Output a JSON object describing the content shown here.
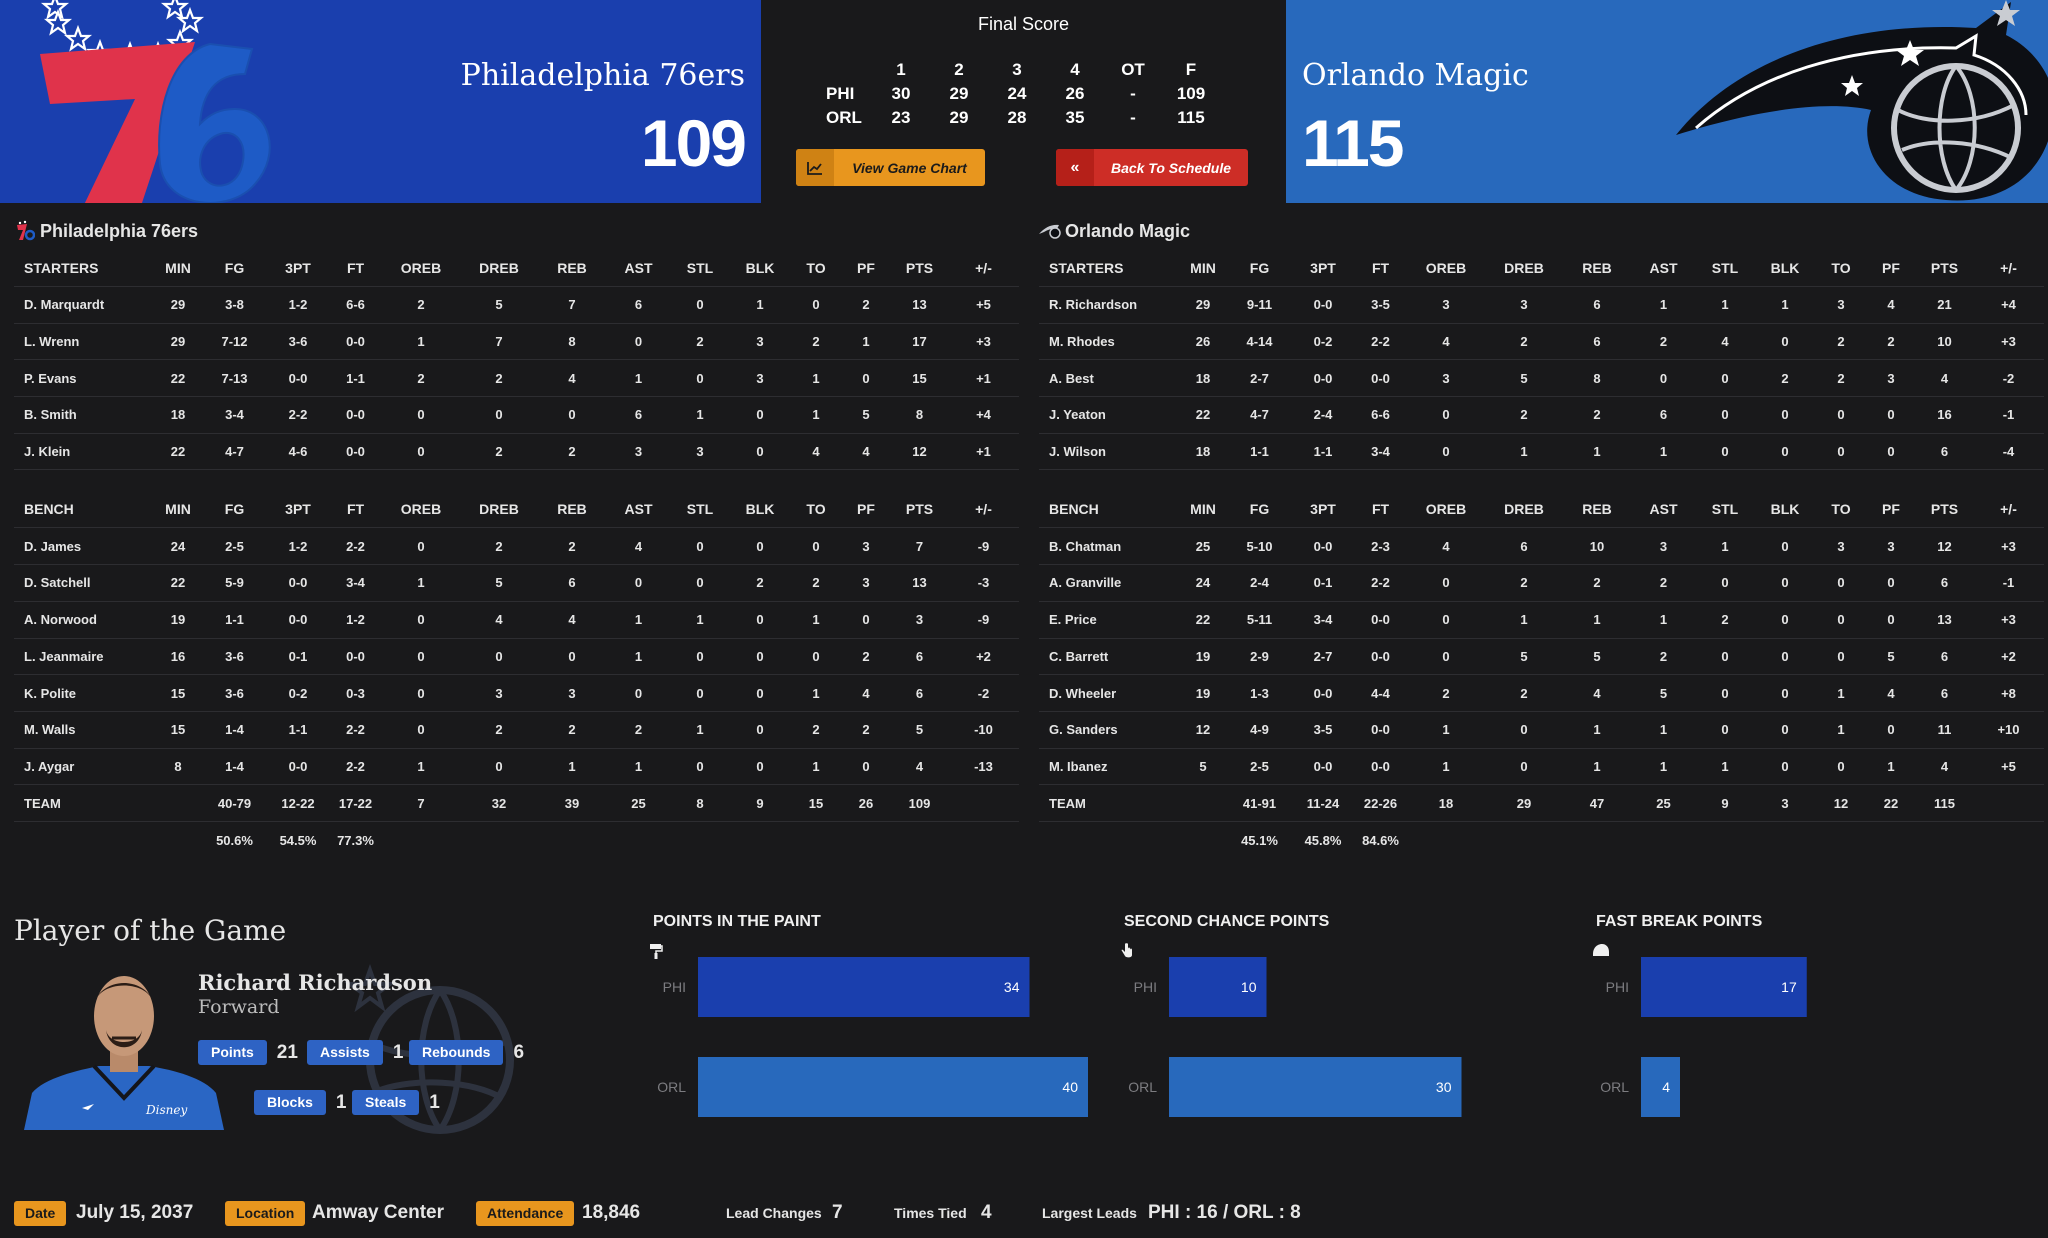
{
  "header": {
    "final_label": "Final Score",
    "home": {
      "name": "Philadelphia 76ers",
      "score": "109",
      "abbr": "PHI",
      "color": "#1a3fae"
    },
    "away": {
      "name": "Orlando Magic",
      "score": "115",
      "abbr": "ORL",
      "color": "#2869bc"
    },
    "linescore": {
      "periods": [
        "1",
        "2",
        "3",
        "4",
        "OT",
        "F"
      ],
      "rows": [
        {
          "team": "PHI",
          "values": [
            "30",
            "29",
            "24",
            "26",
            "-",
            "109"
          ]
        },
        {
          "team": "ORL",
          "values": [
            "23",
            "29",
            "28",
            "35",
            "-",
            "115"
          ]
        }
      ]
    },
    "buttons": {
      "chart_label": "View Game Chart",
      "back_label": "Back To Schedule"
    }
  },
  "boxscore": {
    "columns": [
      "MIN",
      "FG",
      "3PT",
      "FT",
      "OREB",
      "DREB",
      "REB",
      "AST",
      "STL",
      "BLK",
      "TO",
      "PF",
      "PTS",
      "+/-"
    ],
    "starters_label": "STARTERS",
    "bench_label": "BENCH",
    "home": {
      "team_name": "Philadelphia 76ers",
      "starters": [
        [
          "D. Marquardt",
          "29",
          "3-8",
          "1-2",
          "6-6",
          "2",
          "5",
          "7",
          "6",
          "0",
          "1",
          "0",
          "2",
          "13",
          "+5"
        ],
        [
          "L. Wrenn",
          "29",
          "7-12",
          "3-6",
          "0-0",
          "1",
          "7",
          "8",
          "0",
          "2",
          "3",
          "2",
          "1",
          "17",
          "+3"
        ],
        [
          "P. Evans",
          "22",
          "7-13",
          "0-0",
          "1-1",
          "2",
          "2",
          "4",
          "1",
          "0",
          "3",
          "1",
          "0",
          "15",
          "+1"
        ],
        [
          "B. Smith",
          "18",
          "3-4",
          "2-2",
          "0-0",
          "0",
          "0",
          "0",
          "6",
          "1",
          "0",
          "1",
          "5",
          "8",
          "+4"
        ],
        [
          "J. Klein",
          "22",
          "4-7",
          "4-6",
          "0-0",
          "0",
          "2",
          "2",
          "3",
          "3",
          "0",
          "4",
          "4",
          "12",
          "+1"
        ]
      ],
      "bench": [
        [
          "D. James",
          "24",
          "2-5",
          "1-2",
          "2-2",
          "0",
          "2",
          "2",
          "4",
          "0",
          "0",
          "0",
          "3",
          "7",
          "-9"
        ],
        [
          "D. Satchell",
          "22",
          "5-9",
          "0-0",
          "3-4",
          "1",
          "5",
          "6",
          "0",
          "0",
          "2",
          "2",
          "3",
          "13",
          "-3"
        ],
        [
          "A. Norwood",
          "19",
          "1-1",
          "0-0",
          "1-2",
          "0",
          "4",
          "4",
          "1",
          "1",
          "0",
          "1",
          "0",
          "3",
          "-9"
        ],
        [
          "L. Jeanmaire",
          "16",
          "3-6",
          "0-1",
          "0-0",
          "0",
          "0",
          "0",
          "1",
          "0",
          "0",
          "0",
          "2",
          "6",
          "+2"
        ],
        [
          "K. Polite",
          "15",
          "3-6",
          "0-2",
          "0-3",
          "0",
          "3",
          "3",
          "0",
          "0",
          "0",
          "1",
          "4",
          "6",
          "-2"
        ],
        [
          "M. Walls",
          "15",
          "1-4",
          "1-1",
          "2-2",
          "0",
          "2",
          "2",
          "2",
          "1",
          "0",
          "2",
          "2",
          "5",
          "-10"
        ],
        [
          "J. Aygar",
          "8",
          "1-4",
          "0-0",
          "2-2",
          "1",
          "0",
          "1",
          "1",
          "0",
          "0",
          "1",
          "0",
          "4",
          "-13"
        ]
      ],
      "team_row": [
        "TEAM",
        "",
        "40-79",
        "12-22",
        "17-22",
        "7",
        "32",
        "39",
        "25",
        "8",
        "9",
        "15",
        "26",
        "109",
        ""
      ],
      "pct_row": [
        "",
        "",
        "50.6%",
        "54.5%",
        "77.3%",
        "",
        "",
        "",
        "",
        "",
        "",
        "",
        "",
        "",
        ""
      ]
    },
    "away": {
      "team_name": "Orlando Magic",
      "starters": [
        [
          "R. Richardson",
          "29",
          "9-11",
          "0-0",
          "3-5",
          "3",
          "3",
          "6",
          "1",
          "1",
          "1",
          "3",
          "4",
          "21",
          "+4"
        ],
        [
          "M. Rhodes",
          "26",
          "4-14",
          "0-2",
          "2-2",
          "4",
          "2",
          "6",
          "2",
          "4",
          "0",
          "2",
          "2",
          "10",
          "+3"
        ],
        [
          "A. Best",
          "18",
          "2-7",
          "0-0",
          "0-0",
          "3",
          "5",
          "8",
          "0",
          "0",
          "2",
          "2",
          "3",
          "4",
          "-2"
        ],
        [
          "J. Yeaton",
          "22",
          "4-7",
          "2-4",
          "6-6",
          "0",
          "2",
          "2",
          "6",
          "0",
          "0",
          "0",
          "0",
          "16",
          "-1"
        ],
        [
          "J. Wilson",
          "18",
          "1-1",
          "1-1",
          "3-4",
          "0",
          "1",
          "1",
          "1",
          "0",
          "0",
          "0",
          "0",
          "6",
          "-4"
        ]
      ],
      "bench": [
        [
          "B. Chatman",
          "25",
          "5-10",
          "0-0",
          "2-3",
          "4",
          "6",
          "10",
          "3",
          "1",
          "0",
          "3",
          "3",
          "12",
          "+3"
        ],
        [
          "A. Granville",
          "24",
          "2-4",
          "0-1",
          "2-2",
          "0",
          "2",
          "2",
          "2",
          "0",
          "0",
          "0",
          "0",
          "6",
          "-1"
        ],
        [
          "E. Price",
          "22",
          "5-11",
          "3-4",
          "0-0",
          "0",
          "1",
          "1",
          "1",
          "2",
          "0",
          "0",
          "0",
          "13",
          "+3"
        ],
        [
          "C. Barrett",
          "19",
          "2-9",
          "2-7",
          "0-0",
          "0",
          "5",
          "5",
          "2",
          "0",
          "0",
          "0",
          "5",
          "6",
          "+2"
        ],
        [
          "D. Wheeler",
          "19",
          "1-3",
          "0-0",
          "4-4",
          "2",
          "2",
          "4",
          "5",
          "0",
          "0",
          "1",
          "4",
          "6",
          "+8"
        ],
        [
          "G. Sanders",
          "12",
          "4-9",
          "3-5",
          "0-0",
          "1",
          "0",
          "1",
          "1",
          "0",
          "0",
          "1",
          "0",
          "11",
          "+10"
        ],
        [
          "M. Ibanez",
          "5",
          "2-5",
          "0-0",
          "0-0",
          "1",
          "0",
          "1",
          "1",
          "1",
          "0",
          "0",
          "1",
          "4",
          "+5"
        ]
      ],
      "team_row": [
        "TEAM",
        "",
        "41-91",
        "11-24",
        "22-26",
        "18",
        "29",
        "47",
        "25",
        "9",
        "3",
        "12",
        "22",
        "115",
        ""
      ],
      "pct_row": [
        "",
        "",
        "45.1%",
        "45.8%",
        "84.6%",
        "",
        "",
        "",
        "",
        "",
        "",
        "",
        "",
        "",
        ""
      ]
    }
  },
  "pog": {
    "title": "Player of the Game",
    "name": "Richard Richardson",
    "position": "Forward",
    "stats": {
      "points_label": "Points",
      "points": "21",
      "assists_label": "Assists",
      "assists": "1",
      "rebounds_label": "Rebounds",
      "rebounds": "6",
      "blocks_label": "Blocks",
      "blocks": "1",
      "steals_label": "Steals",
      "steals": "1"
    }
  },
  "chart_data": [
    {
      "type": "bar",
      "title": "POINTS IN THE PAINT",
      "icon": "paint-icon",
      "categories": [
        "PHI",
        "ORL"
      ],
      "values": [
        34,
        40
      ],
      "colors": [
        "#1a3fae",
        "#2869bc"
      ]
    },
    {
      "type": "bar",
      "title": "SECOND CHANCE POINTS",
      "icon": "hand-icon",
      "categories": [
        "PHI",
        "ORL"
      ],
      "values": [
        10,
        30
      ],
      "colors": [
        "#1a3fae",
        "#2869bc"
      ]
    },
    {
      "type": "bar",
      "title": "FAST BREAK POINTS",
      "icon": "helmet-icon",
      "categories": [
        "PHI",
        "ORL"
      ],
      "values": [
        17,
        4
      ],
      "colors": [
        "#1a3fae",
        "#2869bc"
      ]
    }
  ],
  "footer": {
    "date_label": "Date",
    "date": "July 15, 2037",
    "location_label": "Location",
    "location": "Amway Center",
    "attendance_label": "Attendance",
    "attendance": "18,846",
    "lead_changes_label": "Lead Changes",
    "lead_changes": "7",
    "times_tied_label": "Times Tied",
    "times_tied": "4",
    "largest_leads_label": "Largest Leads",
    "largest_leads": "PHI : 16 / ORL : 8"
  },
  "colors": {
    "accent": "#e8961e",
    "danger": "#cd2d26",
    "badge": "#2e63c4"
  }
}
